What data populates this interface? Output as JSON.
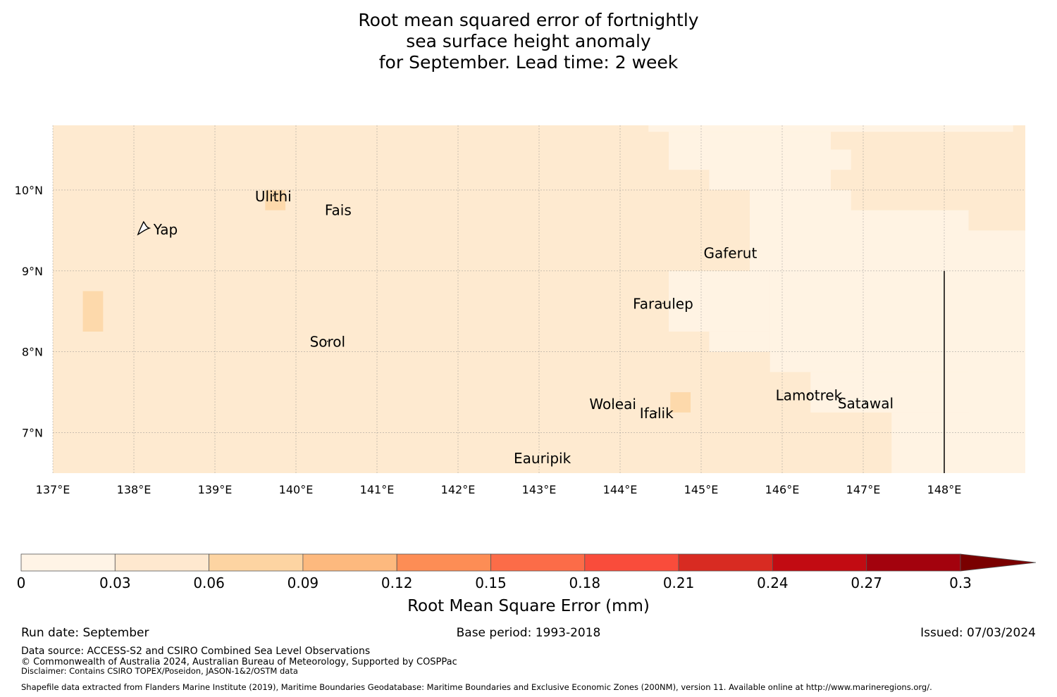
{
  "title": {
    "line1": "Root mean squared error of fortnightly",
    "line2": "sea surface height anomaly",
    "line3": "for September. Lead time: 2 week"
  },
  "map": {
    "lon_range": [
      137,
      149
    ],
    "lat_range": [
      6.5,
      10.8
    ],
    "lon_ticks": [
      {
        "value": 137,
        "label": "137°E"
      },
      {
        "value": 138,
        "label": "138°E"
      },
      {
        "value": 139,
        "label": "139°E"
      },
      {
        "value": 140,
        "label": "140°E"
      },
      {
        "value": 141,
        "label": "141°E"
      },
      {
        "value": 142,
        "label": "142°E"
      },
      {
        "value": 143,
        "label": "143°E"
      },
      {
        "value": 144,
        "label": "144°E"
      },
      {
        "value": 145,
        "label": "145°E"
      },
      {
        "value": 146,
        "label": "146°E"
      },
      {
        "value": 147,
        "label": "147°E"
      },
      {
        "value": 148,
        "label": "148°E"
      }
    ],
    "lat_ticks": [
      {
        "value": 10,
        "label": "10°N"
      },
      {
        "value": 9,
        "label": "9°N"
      },
      {
        "value": 8,
        "label": "8°N"
      },
      {
        "value": 7,
        "label": "7°N"
      }
    ],
    "base_color": "#feead0",
    "fills": [
      {
        "lon": [
          144.35,
          148.85
        ],
        "lat": [
          10.72,
          10.8
        ],
        "color": "#fff3e3"
      },
      {
        "lon": [
          144.6,
          145.1
        ],
        "lat": [
          10.25,
          10.72
        ],
        "color": "#fff3e3"
      },
      {
        "lon": [
          145.1,
          146.6
        ],
        "lat": [
          10.0,
          10.72
        ],
        "color": "#fff3e3"
      },
      {
        "lon": [
          146.6,
          146.85
        ],
        "lat": [
          10.25,
          10.5
        ],
        "color": "#fff3e3"
      },
      {
        "lon": [
          145.6,
          146.85
        ],
        "lat": [
          9.0,
          10.0
        ],
        "color": "#fff3e3"
      },
      {
        "lon": [
          145.85,
          148.3
        ],
        "lat": [
          7.75,
          9.75
        ],
        "color": "#fff3e3"
      },
      {
        "lon": [
          148.3,
          149.0
        ],
        "lat": [
          6.5,
          9.5
        ],
        "color": "#fff3e3"
      },
      {
        "lon": [
          144.6,
          145.85
        ],
        "lat": [
          8.25,
          9.0
        ],
        "color": "#fff3e3"
      },
      {
        "lon": [
          145.1,
          145.85
        ],
        "lat": [
          8.0,
          8.25
        ],
        "color": "#fff3e3"
      },
      {
        "lon": [
          146.35,
          148.3
        ],
        "lat": [
          7.25,
          7.75
        ],
        "color": "#fff3e3"
      },
      {
        "lon": [
          147.35,
          148.3
        ],
        "lat": [
          6.5,
          7.25
        ],
        "color": "#fff3e3"
      },
      {
        "lon": [
          137.37,
          137.62
        ],
        "lat": [
          8.25,
          8.75
        ],
        "color": "#fdd9ab"
      },
      {
        "lon": [
          139.62,
          139.87
        ],
        "lat": [
          9.75,
          10.0
        ],
        "color": "#fdd9ab"
      },
      {
        "lon": [
          144.62,
          144.87
        ],
        "lat": [
          7.25,
          7.5
        ],
        "color": "#fdd9ab"
      }
    ],
    "eez_line": {
      "lon": 148.0,
      "lat": [
        6.5,
        9.0
      ]
    },
    "islands": [
      {
        "name": "Yap",
        "lon": 138.12,
        "lat": 9.52
      },
      {
        "name": "Ulithi",
        "lon": 139.72,
        "lat": 9.93
      },
      {
        "name": "Fais",
        "lon": 140.52,
        "lat": 9.76
      },
      {
        "name": "Gaferut",
        "lon": 145.36,
        "lat": 9.23
      },
      {
        "name": "Faraulep",
        "lon": 144.53,
        "lat": 8.6
      },
      {
        "name": "Sorol",
        "lon": 140.39,
        "lat": 8.13
      },
      {
        "name": "Woleai",
        "lon": 143.91,
        "lat": 7.36
      },
      {
        "name": "Ifalik",
        "lon": 144.45,
        "lat": 7.25
      },
      {
        "name": "Lamotrek",
        "lon": 146.33,
        "lat": 7.47
      },
      {
        "name": "Satawal",
        "lon": 147.03,
        "lat": 7.37
      },
      {
        "name": "Eauripik",
        "lon": 143.04,
        "lat": 6.69
      }
    ]
  },
  "legend": {
    "title": "Root Mean Square Error (mm)",
    "ticks": [
      "0",
      "0.03",
      "0.06",
      "0.09",
      "0.12",
      "0.15",
      "0.18",
      "0.21",
      "0.24",
      "0.27",
      "0.3"
    ],
    "colors": [
      "#fff4e6",
      "#fee8cf",
      "#fdd4a2",
      "#fdb97e",
      "#fd8d55",
      "#fc6c48",
      "#f94c3b",
      "#d82b22",
      "#c20b12",
      "#a3020d"
    ],
    "extend_color": "#7a0000"
  },
  "footer": {
    "run_date": "Run date: September",
    "base_period": "Base period: 1993-2018",
    "issued": "Issued: 07/03/2024",
    "data_source": "Data source: ACCESS-S2 and CSIRO Combined Sea Level Observations",
    "copyright": "© Commonwealth of Australia 2024, Australian Bureau of Meteorology, Supported by COSPPac",
    "disclaimer": "Disclaimer: Contains CSIRO TOPEX/Poseidon, JASON-1&2/OSTM data",
    "shapefile": "Shapefile data extracted from Flanders Marine Institute (2019), Maritime Boundaries Geodatabase: Maritime Boundaries and Exclusive Economic Zones (200NM), version 11. Available online at http://www.marineregions.org/."
  }
}
